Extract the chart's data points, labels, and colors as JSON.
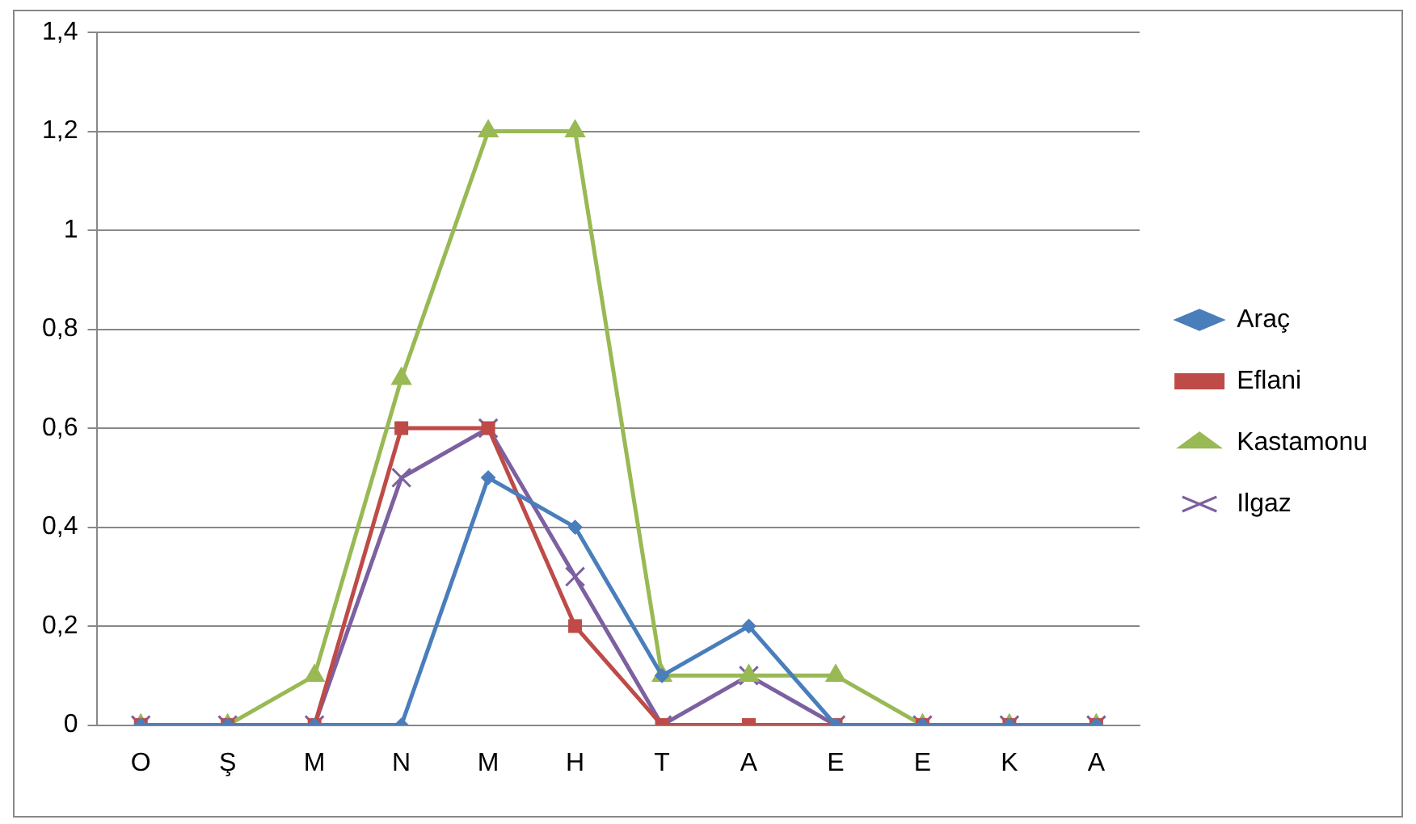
{
  "chart_data": {
    "type": "line",
    "categories": [
      "O",
      "Ş",
      "M",
      "N",
      "M",
      "H",
      "T",
      "A",
      "E",
      "E",
      "K",
      "A"
    ],
    "series": [
      {
        "name": "Araç",
        "color": "#4a7ebb",
        "marker": "diamond",
        "values": [
          0,
          0,
          0,
          0,
          0.5,
          0.4,
          0.1,
          0.2,
          0,
          0,
          0,
          0
        ]
      },
      {
        "name": "Eflani",
        "color": "#be4b48",
        "marker": "square",
        "values": [
          0,
          0,
          0,
          0.6,
          0.6,
          0.2,
          0,
          0,
          0,
          0,
          0,
          0
        ]
      },
      {
        "name": "Kastamonu",
        "color": "#98b954",
        "marker": "triangle",
        "values": [
          0,
          0,
          0.1,
          0.7,
          1.2,
          1.2,
          0.1,
          0.1,
          0.1,
          0,
          0,
          0
        ]
      },
      {
        "name": "Ilgaz",
        "color": "#7d60a0",
        "marker": "cross",
        "values": [
          0,
          0,
          0,
          0.5,
          0.6,
          0.3,
          0,
          0.1,
          0,
          0,
          0,
          0
        ]
      }
    ],
    "ylim": [
      0,
      1.4
    ],
    "yticks": [
      0,
      {
        "value": 0.2,
        "label": "0,2"
      },
      {
        "value": 0.4,
        "label": "0,4"
      },
      {
        "value": 0.6,
        "label": "0,6"
      },
      {
        "value": 0.8,
        "label": "0,8"
      },
      1,
      {
        "value": 1.2,
        "label": "1,2"
      },
      {
        "value": 1.4,
        "label": "1,4"
      }
    ],
    "grid": "y",
    "legend": "right",
    "line_style": "solid"
  }
}
